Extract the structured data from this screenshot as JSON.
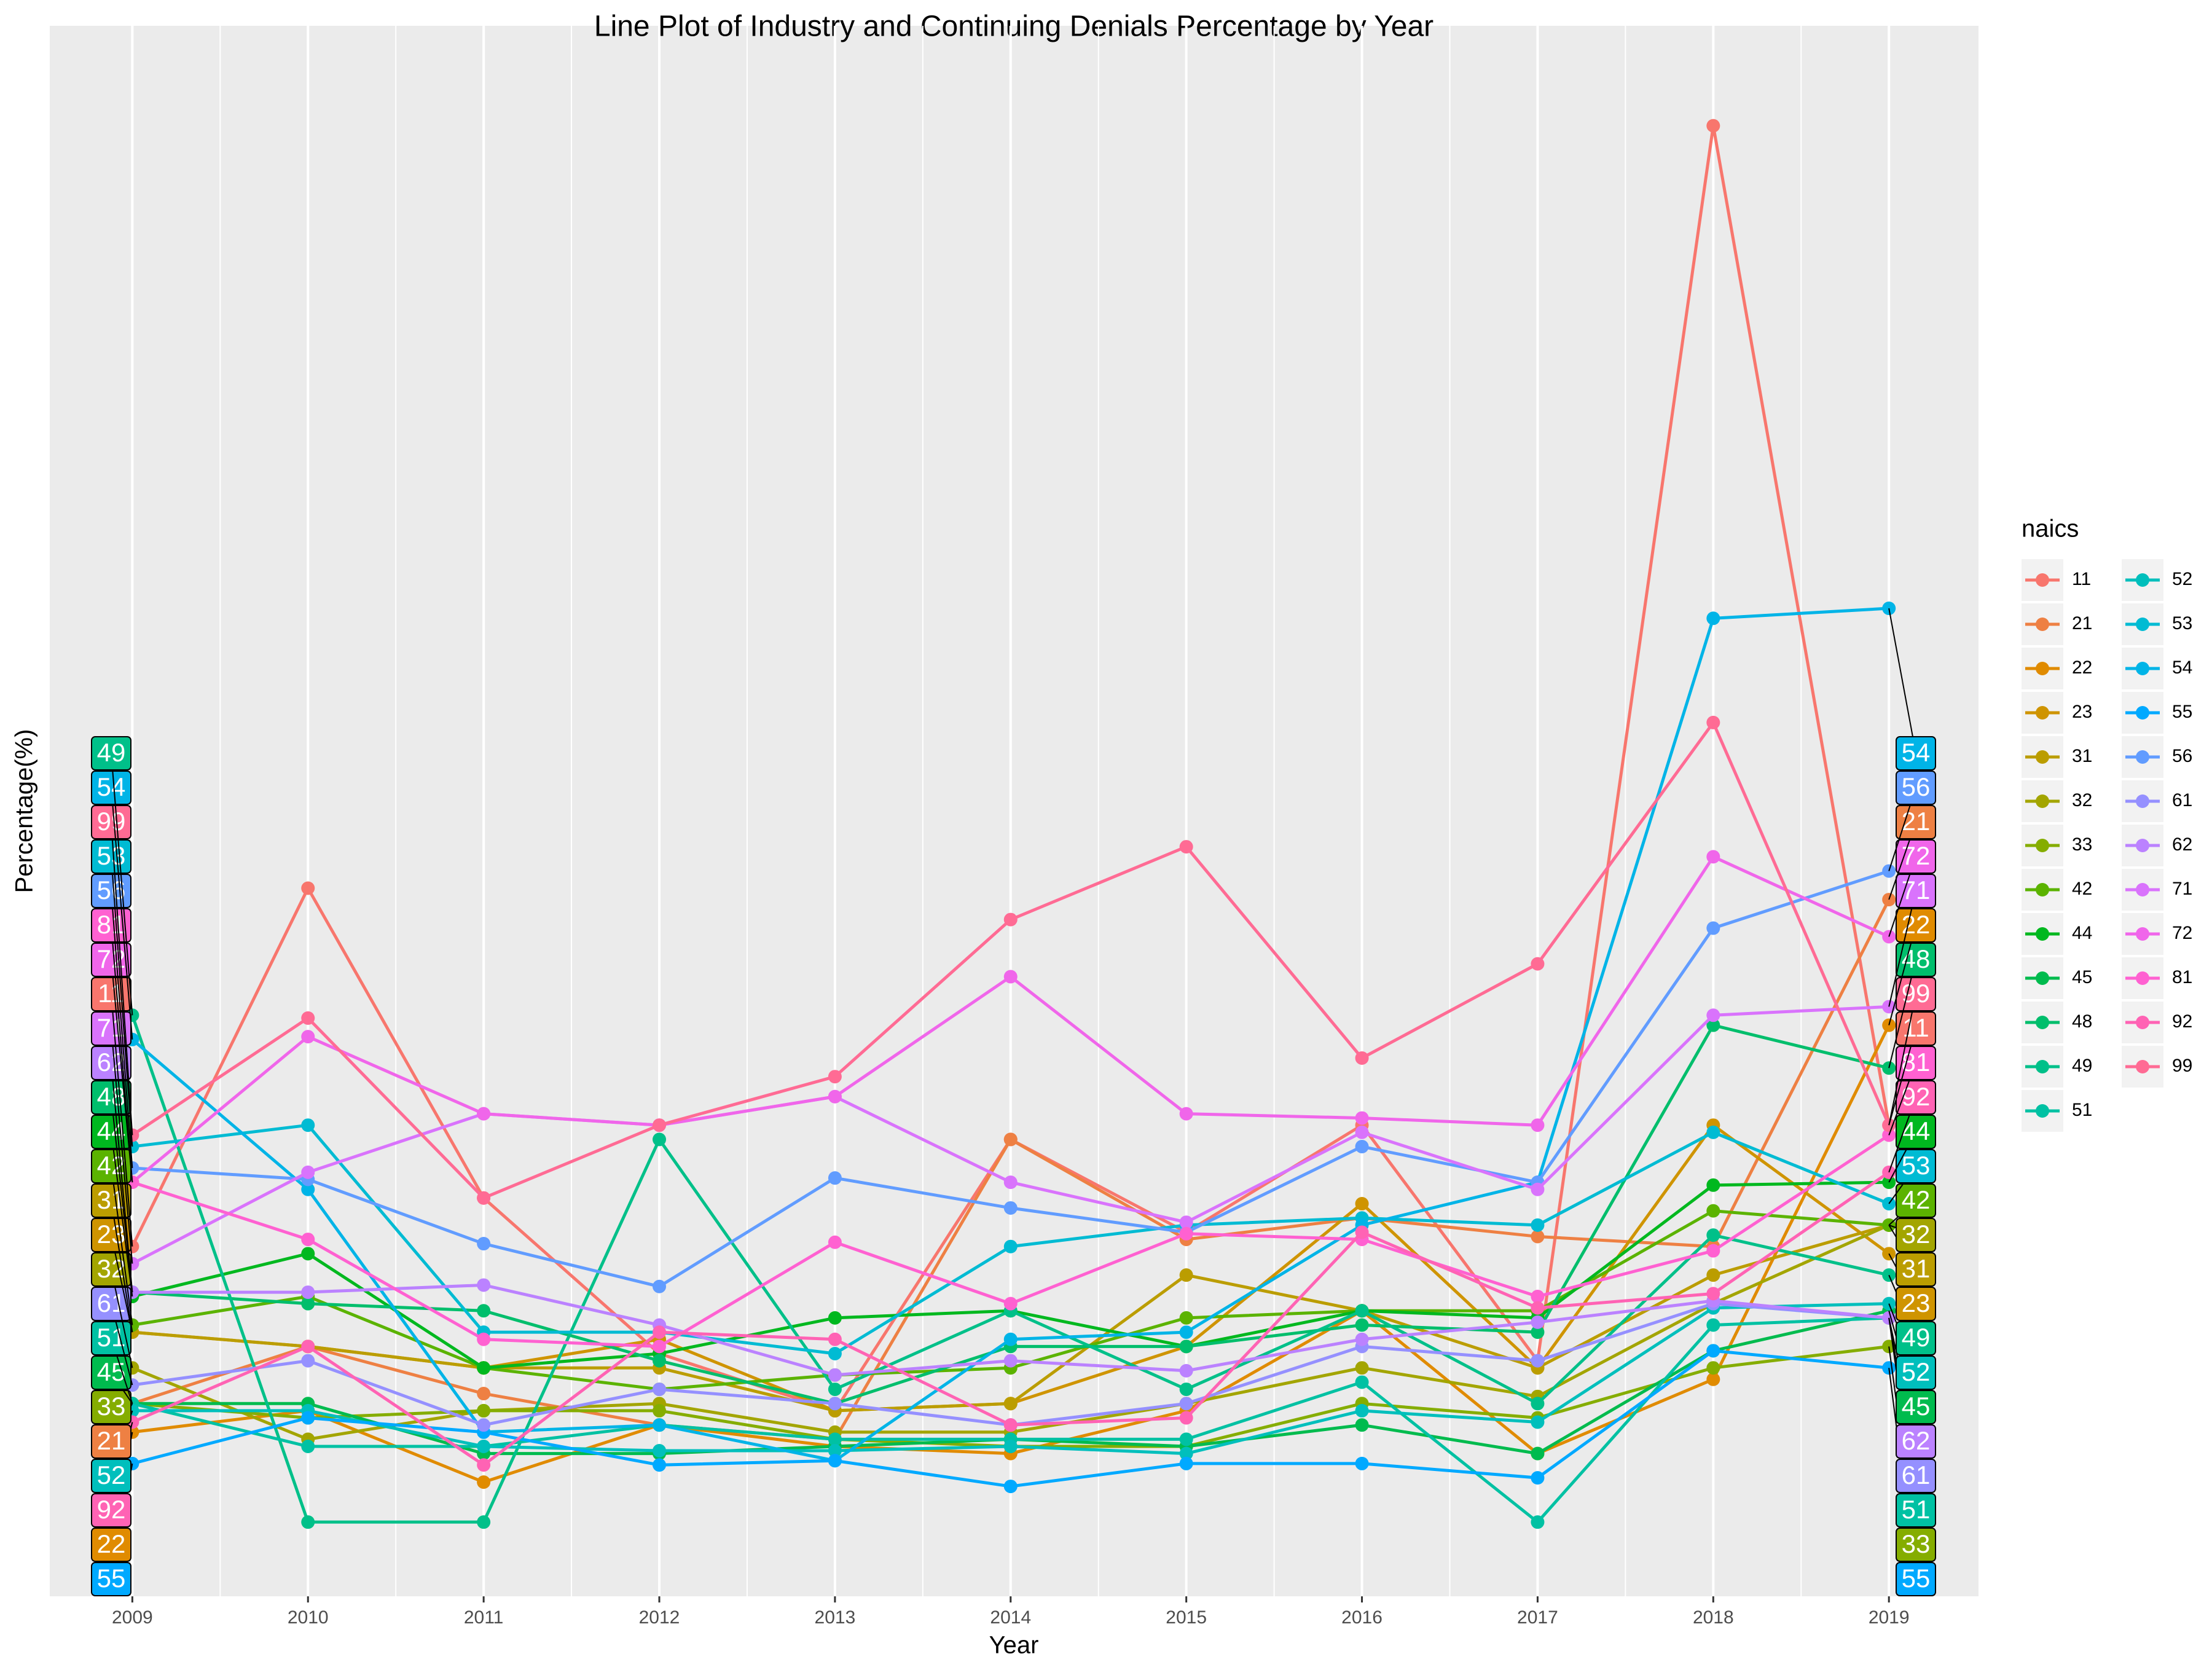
{
  "chart_data": {
    "type": "line",
    "title": "Line Plot of Industry and Continuing Denials Percentage by Year",
    "x_label": "Year",
    "y_label": "Percentage(%)",
    "legend_title": "naics",
    "x": [
      2009,
      2010,
      2011,
      2012,
      2013,
      2014,
      2015,
      2016,
      2017,
      2018,
      2019
    ],
    "xlim": [
      2008.53,
      2019.51
    ],
    "xticks": [
      2009,
      2010,
      2011,
      2012,
      2013,
      2014,
      2015,
      2016,
      2017,
      2018,
      2019
    ],
    "ylim": [
      0,
      110
    ],
    "grid": true,
    "legend": "right",
    "series": [
      {
        "name": "11",
        "color": "#F8766D",
        "values": [
          24.5,
          49.6,
          27.9,
          17,
          13,
          32,
          25.5,
          33,
          16.5,
          103,
          33
        ]
      },
      {
        "name": "21",
        "color": "#EE8043",
        "values": [
          13.5,
          17.5,
          14.2,
          12,
          11,
          32,
          25,
          26.5,
          25.2,
          24.5,
          48.8
        ]
      },
      {
        "name": "22",
        "color": "#E08B00",
        "values": [
          11.5,
          13,
          8,
          12,
          10.5,
          10,
          13,
          20,
          10,
          15.2,
          40
        ]
      },
      {
        "name": "23",
        "color": "#CF9400",
        "values": [
          18.5,
          17.5,
          16,
          18,
          13,
          13.5,
          17.5,
          27.5,
          16,
          33,
          24
        ]
      },
      {
        "name": "31",
        "color": "#BB9D00",
        "values": [
          18.5,
          17.5,
          16,
          16,
          13,
          13.5,
          22.5,
          20,
          16,
          22.5,
          26
        ]
      },
      {
        "name": "32",
        "color": "#A3A500",
        "values": [
          16,
          11,
          13,
          13.5,
          11.5,
          11.5,
          13.5,
          16,
          14,
          20.5,
          26
        ]
      },
      {
        "name": "33",
        "color": "#85AD00",
        "values": [
          13.5,
          12.5,
          13,
          13,
          11,
          10.5,
          10.5,
          13.5,
          12.5,
          16,
          17.5
        ]
      },
      {
        "name": "42",
        "color": "#5BB300",
        "values": [
          19,
          21,
          16,
          14.5,
          15.5,
          16,
          19.5,
          20,
          20,
          27,
          26
        ]
      },
      {
        "name": "44",
        "color": "#00B81F",
        "values": [
          21,
          24,
          16,
          17,
          19.5,
          20,
          17.5,
          20,
          19.5,
          28.8,
          29
        ]
      },
      {
        "name": "45",
        "color": "#00BB4E",
        "values": [
          13.5,
          13.5,
          10,
          10,
          10.5,
          11,
          10.5,
          12,
          10,
          17.2,
          20
        ]
      },
      {
        "name": "48",
        "color": "#00BE6C",
        "values": [
          21.3,
          20.5,
          20,
          16.5,
          13.5,
          17.5,
          17.5,
          19,
          18.5,
          40,
          37
        ]
      },
      {
        "name": "49",
        "color": "#00C089",
        "values": [
          40.7,
          5.2,
          5.2,
          32,
          14.5,
          20,
          14.5,
          20,
          13.5,
          25.3,
          22.5
        ]
      },
      {
        "name": "51",
        "color": "#00C1A3",
        "values": [
          13.5,
          10.5,
          10.5,
          12,
          11,
          11,
          11,
          15,
          5.2,
          19,
          19.5
        ]
      },
      {
        "name": "52",
        "color": "#00BFBC",
        "values": [
          13,
          13,
          10.5,
          10.2,
          10.2,
          10.5,
          10,
          13,
          12.2,
          20.2,
          20.5
        ]
      },
      {
        "name": "53",
        "color": "#00BBD3",
        "values": [
          31.5,
          33,
          18.5,
          18.5,
          17,
          24.5,
          26,
          26.5,
          26,
          32.5,
          27.5
        ]
      },
      {
        "name": "54",
        "color": "#00B4E7",
        "values": [
          39,
          28.5,
          11.5,
          12,
          9.5,
          18,
          18.5,
          26,
          29,
          68.5,
          69.2
        ]
      },
      {
        "name": "55",
        "color": "#00A9FF",
        "values": [
          9.3,
          12.5,
          11.5,
          9.2,
          9.5,
          7.7,
          9.3,
          9.3,
          8.3,
          17.2,
          16
        ]
      },
      {
        "name": "56",
        "color": "#619CFF",
        "values": [
          30,
          29.2,
          24.7,
          21.7,
          29.3,
          27.2,
          25.5,
          31.5,
          29,
          46.8,
          50.8
        ]
      },
      {
        "name": "61",
        "color": "#9590FF",
        "values": [
          14.8,
          16.5,
          12,
          14.5,
          13.5,
          12,
          13.5,
          17.5,
          16.5,
          20.5,
          19.5
        ]
      },
      {
        "name": "62",
        "color": "#BB82FF",
        "values": [
          21.3,
          21.3,
          21.8,
          19,
          15.5,
          16.5,
          15.8,
          18,
          19.2,
          20.7,
          19.5
        ]
      },
      {
        "name": "71",
        "color": "#D973FC",
        "values": [
          23.3,
          29.7,
          33.8,
          33,
          35,
          29,
          26.2,
          32.5,
          28.5,
          40.7,
          41.3
        ]
      },
      {
        "name": "72",
        "color": "#F066EA",
        "values": [
          29,
          39.2,
          33.8,
          33,
          35,
          43.4,
          33.8,
          33.5,
          33,
          51.8,
          46.2
        ]
      },
      {
        "name": "81",
        "color": "#FF61D1",
        "values": [
          29,
          25,
          18,
          17.5,
          24.8,
          20.5,
          25.4,
          25,
          21,
          24.2,
          32.3
        ]
      },
      {
        "name": "92",
        "color": "#FF63B4",
        "values": [
          12.2,
          17.5,
          9.2,
          18.5,
          18,
          12,
          12.5,
          25.5,
          20.2,
          21.2,
          29.7
        ]
      },
      {
        "name": "99",
        "color": "#FF6B94",
        "values": [
          32.3,
          40.5,
          27.9,
          33,
          36.4,
          47.4,
          52.5,
          37.7,
          44.3,
          61.2,
          33
        ]
      }
    ]
  }
}
